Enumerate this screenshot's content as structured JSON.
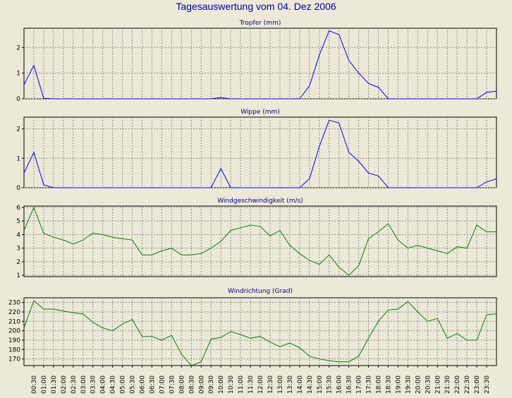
{
  "title": "Tagesauswertung vom 04. Dez 2006",
  "colors": {
    "background": "#ece9d8",
    "rain": "#0000ff",
    "wind": "#008000",
    "title": "#0000a0"
  },
  "x_labels": [
    "00:30",
    "01:00",
    "01:30",
    "02:00",
    "02:30",
    "03:00",
    "03:30",
    "04:00",
    "04:30",
    "05:00",
    "05:30",
    "06:00",
    "06:30",
    "07:00",
    "07:30",
    "08:00",
    "08:30",
    "09:00",
    "09:30",
    "10:00",
    "10:30",
    "11:00",
    "11:30",
    "12:00",
    "12:30",
    "13:00",
    "13:30",
    "14:00",
    "14:30",
    "15:00",
    "15:30",
    "16:00",
    "16:30",
    "17:00",
    "17:30",
    "18:00",
    "18:30",
    "19:00",
    "19:30",
    "20:00",
    "20:30",
    "21:00",
    "21:30",
    "22:00",
    "22:30",
    "23:00",
    "23:30"
  ],
  "chart_data": [
    {
      "type": "line",
      "title": "Tropfer (mm)",
      "ylim": [
        0,
        2.75
      ],
      "yticks": [
        0,
        1,
        2
      ],
      "grid": true,
      "x": [
        "00:00",
        "00:30",
        "01:00",
        "01:30",
        "02:00",
        "02:30",
        "03:00",
        "03:30",
        "04:00",
        "04:30",
        "05:00",
        "05:30",
        "06:00",
        "06:30",
        "07:00",
        "07:30",
        "08:00",
        "08:30",
        "09:00",
        "09:30",
        "10:00",
        "10:30",
        "11:00",
        "11:30",
        "12:00",
        "12:30",
        "13:00",
        "13:30",
        "14:00",
        "14:30",
        "15:00",
        "15:30",
        "16:00",
        "16:30",
        "17:00",
        "17:30",
        "18:00",
        "18:30",
        "19:00",
        "19:30",
        "20:00",
        "20:30",
        "21:00",
        "21:30",
        "22:00",
        "22:30",
        "23:00",
        "23:30",
        "24:00"
      ],
      "series": [
        {
          "values": [
            0.55,
            1.3,
            0.02,
            0,
            0,
            0,
            0,
            0,
            0,
            0,
            0,
            0,
            0,
            0,
            0,
            0,
            0,
            0,
            0,
            0,
            0.05,
            0,
            0,
            0,
            0,
            0,
            0,
            0,
            0,
            0.5,
            1.7,
            2.65,
            2.5,
            1.5,
            1.0,
            0.6,
            0.45,
            0,
            0,
            0,
            0,
            0,
            0,
            0,
            0,
            0,
            0,
            0.25,
            0.3
          ]
        }
      ]
    },
    {
      "type": "line",
      "title": "Wippe (mm)",
      "ylim": [
        0,
        2.4
      ],
      "yticks": [
        0,
        1,
        2
      ],
      "grid": true,
      "x": [
        "00:00",
        "00:30",
        "01:00",
        "01:30",
        "02:00",
        "02:30",
        "03:00",
        "03:30",
        "04:00",
        "04:30",
        "05:00",
        "05:30",
        "06:00",
        "06:30",
        "07:00",
        "07:30",
        "08:00",
        "08:30",
        "09:00",
        "09:30",
        "10:00",
        "10:30",
        "11:00",
        "11:30",
        "12:00",
        "12:30",
        "13:00",
        "13:30",
        "14:00",
        "14:30",
        "15:00",
        "15:30",
        "16:00",
        "16:30",
        "17:00",
        "17:30",
        "18:00",
        "18:30",
        "19:00",
        "19:30",
        "20:00",
        "20:30",
        "21:00",
        "21:30",
        "22:00",
        "22:30",
        "23:00",
        "23:30",
        "24:00"
      ],
      "series": [
        {
          "values": [
            0.5,
            1.2,
            0.1,
            0,
            0,
            0,
            0,
            0,
            0,
            0,
            0,
            0,
            0,
            0,
            0,
            0,
            0,
            0,
            0,
            0,
            0.65,
            0,
            0,
            0,
            0,
            0,
            0,
            0,
            0,
            0.3,
            1.4,
            2.3,
            2.2,
            1.2,
            0.9,
            0.5,
            0.4,
            0,
            0,
            0,
            0,
            0,
            0,
            0,
            0,
            0,
            0,
            0.2,
            0.3
          ]
        }
      ]
    },
    {
      "type": "line",
      "title": "Windgeschwindigkeit (m/s)",
      "ylim": [
        0.9,
        6.1
      ],
      "yticks": [
        1,
        2,
        3,
        4,
        5,
        6
      ],
      "grid": true,
      "x": [
        "00:00",
        "00:30",
        "01:00",
        "01:30",
        "02:00",
        "02:30",
        "03:00",
        "03:30",
        "04:00",
        "04:30",
        "05:00",
        "05:30",
        "06:00",
        "06:30",
        "07:00",
        "07:30",
        "08:00",
        "08:30",
        "09:00",
        "09:30",
        "10:00",
        "10:30",
        "11:00",
        "11:30",
        "12:00",
        "12:30",
        "13:00",
        "13:30",
        "14:00",
        "14:30",
        "15:00",
        "15:30",
        "16:00",
        "16:30",
        "17:00",
        "17:30",
        "18:00",
        "18:30",
        "19:00",
        "19:30",
        "20:00",
        "20:30",
        "21:00",
        "21:30",
        "22:00",
        "22:30",
        "23:00",
        "23:30",
        "24:00"
      ],
      "series": [
        {
          "values": [
            4.3,
            6.0,
            4.1,
            3.8,
            3.6,
            3.3,
            3.6,
            4.1,
            4.0,
            3.8,
            3.7,
            3.6,
            2.5,
            2.5,
            2.8,
            3.0,
            2.5,
            2.5,
            2.6,
            3.0,
            3.5,
            4.3,
            4.5,
            4.7,
            4.6,
            3.9,
            4.3,
            3.2,
            2.6,
            2.1,
            1.8,
            2.5,
            1.6,
            1.0,
            1.7,
            3.7,
            4.2,
            4.8,
            3.6,
            3.0,
            3.2,
            3.0,
            2.8,
            2.6,
            3.1,
            3.0,
            4.7,
            4.2,
            4.2
          ]
        }
      ]
    },
    {
      "type": "line",
      "title": "Windrichtung (Grad)",
      "ylim": [
        163,
        235
      ],
      "yticks": [
        170,
        180,
        190,
        200,
        210,
        220,
        230
      ],
      "grid": true,
      "x": [
        "00:00",
        "00:30",
        "01:00",
        "01:30",
        "02:00",
        "02:30",
        "03:00",
        "03:30",
        "04:00",
        "04:30",
        "05:00",
        "05:30",
        "06:00",
        "06:30",
        "07:00",
        "07:30",
        "08:00",
        "08:30",
        "09:00",
        "09:30",
        "10:00",
        "10:30",
        "11:00",
        "11:30",
        "12:00",
        "12:30",
        "13:00",
        "13:30",
        "14:00",
        "14:30",
        "15:00",
        "15:30",
        "16:00",
        "16:30",
        "17:00",
        "17:30",
        "18:00",
        "18:30",
        "19:00",
        "19:30",
        "20:00",
        "20:30",
        "21:00",
        "21:30",
        "22:00",
        "22:30",
        "23:00",
        "23:30",
        "24:00"
      ],
      "series": [
        {
          "values": [
            203,
            232,
            223,
            223,
            221,
            219,
            218,
            209,
            203,
            200,
            207,
            212,
            194,
            194,
            190,
            195,
            175,
            163,
            167,
            191,
            193,
            199,
            196,
            192,
            194,
            188,
            183,
            187,
            182,
            173,
            170,
            168,
            167,
            167,
            173,
            192,
            210,
            222,
            223,
            231,
            220,
            210,
            213,
            192,
            197,
            190,
            190,
            217,
            218
          ]
        }
      ]
    }
  ]
}
